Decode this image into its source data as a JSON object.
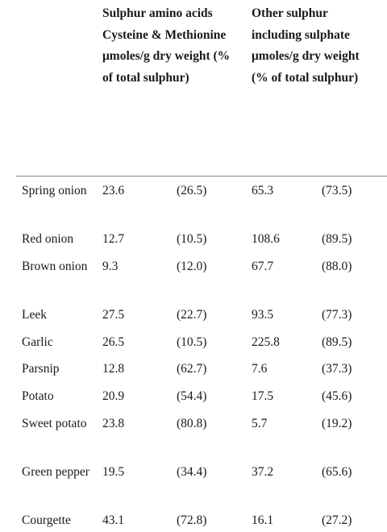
{
  "table": {
    "header": {
      "col1_lines": [
        "Sulphur amino acids",
        "Cysteine & Methionine",
        "μmoles/g dry weight (%",
        "of total sulphur)"
      ],
      "col2_lines": [
        "Other sulphur",
        "including sulphate",
        "μmoles/g dry weight",
        "(% of total sulphur)"
      ]
    },
    "rows": [
      {
        "name": "Spring onion",
        "sulphur_amino": "23.6",
        "sulphur_amino_pct": "(26.5)",
        "other_sulphur": "65.3",
        "other_sulphur_pct": "(73.5)"
      },
      {
        "name": "Red onion",
        "sulphur_amino": "12.7",
        "sulphur_amino_pct": "(10.5)",
        "other_sulphur": "108.6",
        "other_sulphur_pct": "(89.5)"
      },
      {
        "name": "Brown onion",
        "sulphur_amino": "9.3",
        "sulphur_amino_pct": "(12.0)",
        "other_sulphur": "67.7",
        "other_sulphur_pct": "(88.0)"
      },
      {
        "name": "Leek",
        "sulphur_amino": "27.5",
        "sulphur_amino_pct": "(22.7)",
        "other_sulphur": "93.5",
        "other_sulphur_pct": "(77.3)"
      },
      {
        "name": "Garlic",
        "sulphur_amino": "26.5",
        "sulphur_amino_pct": "(10.5)",
        "other_sulphur": "225.8",
        "other_sulphur_pct": "(89.5)"
      },
      {
        "name": "Parsnip",
        "sulphur_amino": "12.8",
        "sulphur_amino_pct": "(62.7)",
        "other_sulphur": "7.6",
        "other_sulphur_pct": "(37.3)"
      },
      {
        "name": "Potato",
        "sulphur_amino": "20.9",
        "sulphur_amino_pct": "(54.4)",
        "other_sulphur": "17.5",
        "other_sulphur_pct": "(45.6)"
      },
      {
        "name": "Sweet potato",
        "sulphur_amino": "23.8",
        "sulphur_amino_pct": "(80.8)",
        "other_sulphur": "5.7",
        "other_sulphur_pct": "(19.2)"
      },
      {
        "name": "Green pepper",
        "sulphur_amino": "19.5",
        "sulphur_amino_pct": "(34.4)",
        "other_sulphur": "37.2",
        "other_sulphur_pct": "(65.6)"
      },
      {
        "name": "Courgette",
        "sulphur_amino": "43.1",
        "sulphur_amino_pct": "(72.8)",
        "other_sulphur": "16.1",
        "other_sulphur_pct": "(27.2)"
      }
    ]
  }
}
